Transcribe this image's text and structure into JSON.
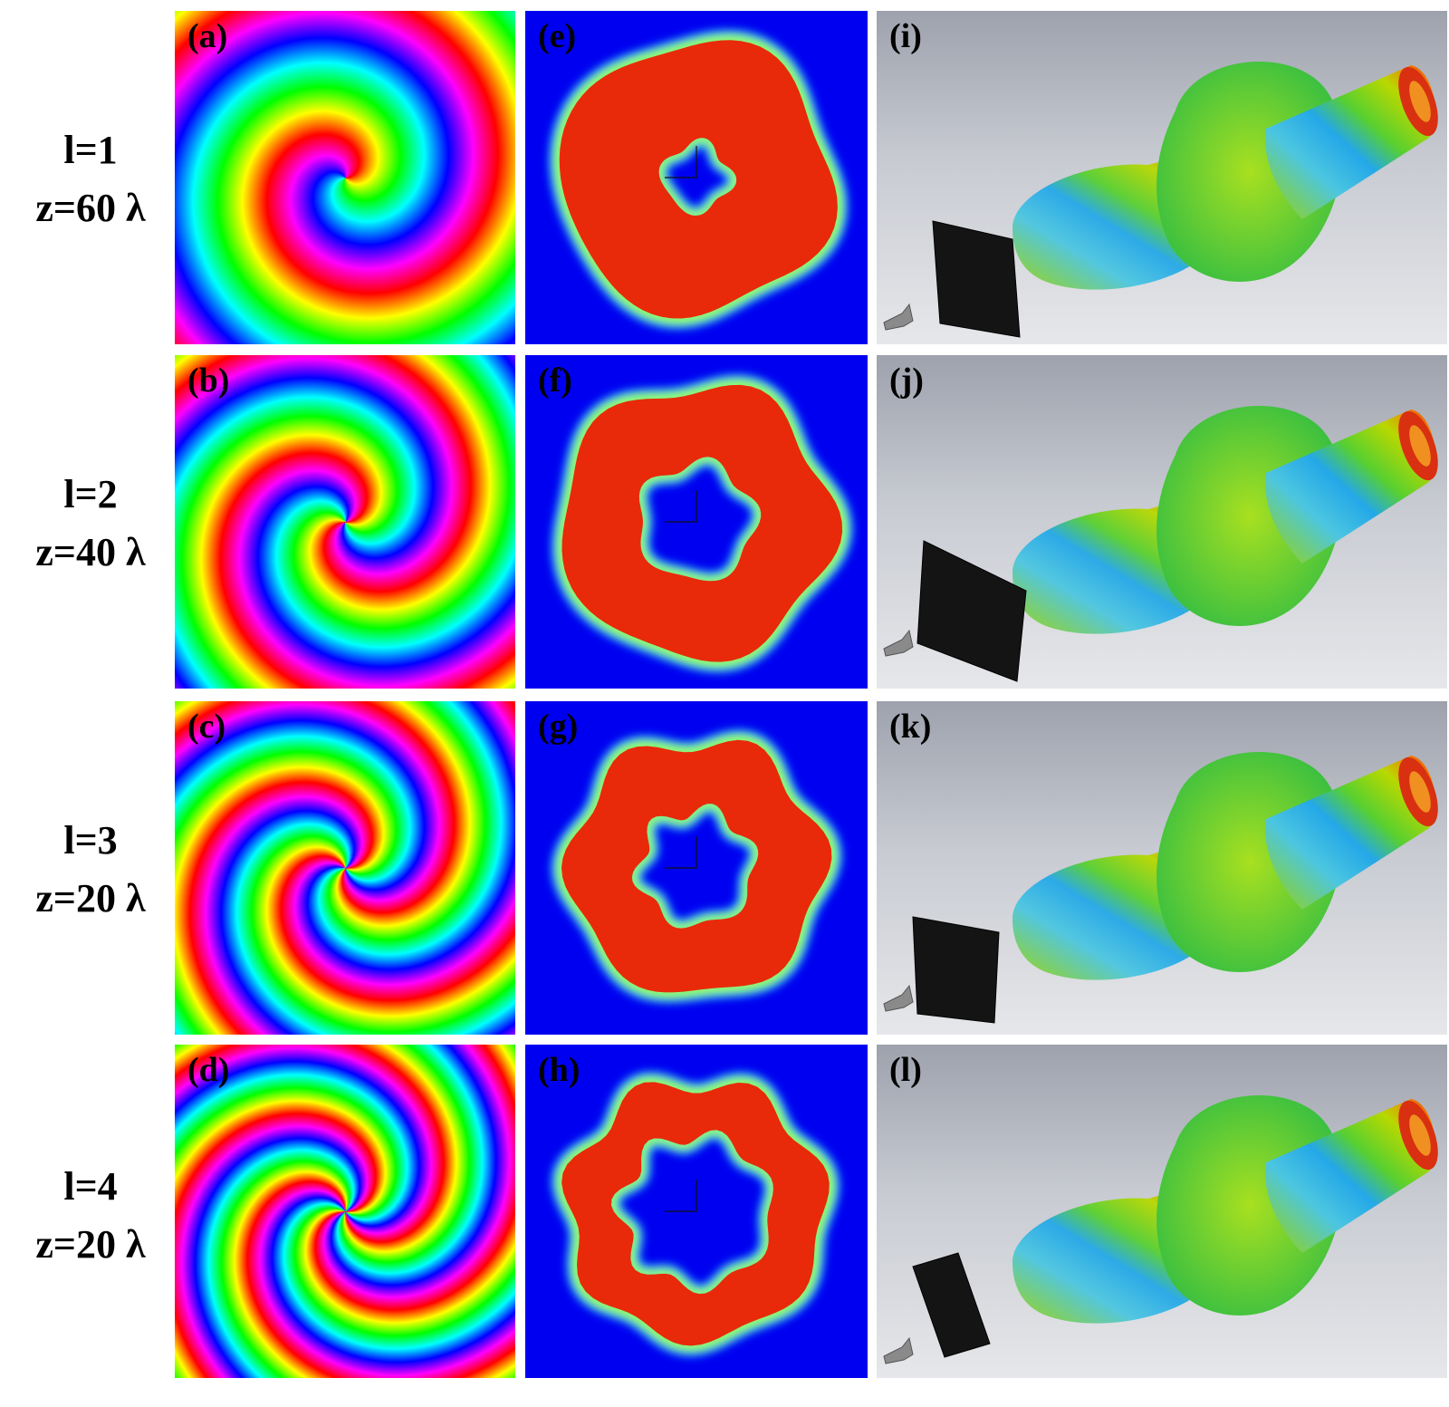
{
  "rows": [
    {
      "l_label": "l=1",
      "z_label": "z=60 λ",
      "charge": 1,
      "panels": {
        "phase": "(a)",
        "intensity": "(e)",
        "pattern": "(i)"
      }
    },
    {
      "l_label": "l=2",
      "z_label": "z=40 λ",
      "charge": 2,
      "panels": {
        "phase": "(b)",
        "intensity": "(f)",
        "pattern": "(j)"
      }
    },
    {
      "l_label": "l=3",
      "z_label": "z=20 λ",
      "charge": 3,
      "panels": {
        "phase": "(c)",
        "intensity": "(g)",
        "pattern": "(k)"
      }
    },
    {
      "l_label": "l=4",
      "z_label": "z=20 λ",
      "charge": 4,
      "panels": {
        "phase": "(d)",
        "intensity": "(h)",
        "pattern": "(l)"
      }
    }
  ],
  "colors": {
    "intensity_background": "#0000f0",
    "intensity_ring": "#e82a0a",
    "pattern_background": "#c8cbd2",
    "metasurface": "#141414",
    "feed_horn": "#8a8a8a"
  },
  "icons": {
    "phase_map": "spiral-phase-icon",
    "intensity_map": "donut-ring-icon",
    "far_field": "radiation-lobe-icon"
  }
}
